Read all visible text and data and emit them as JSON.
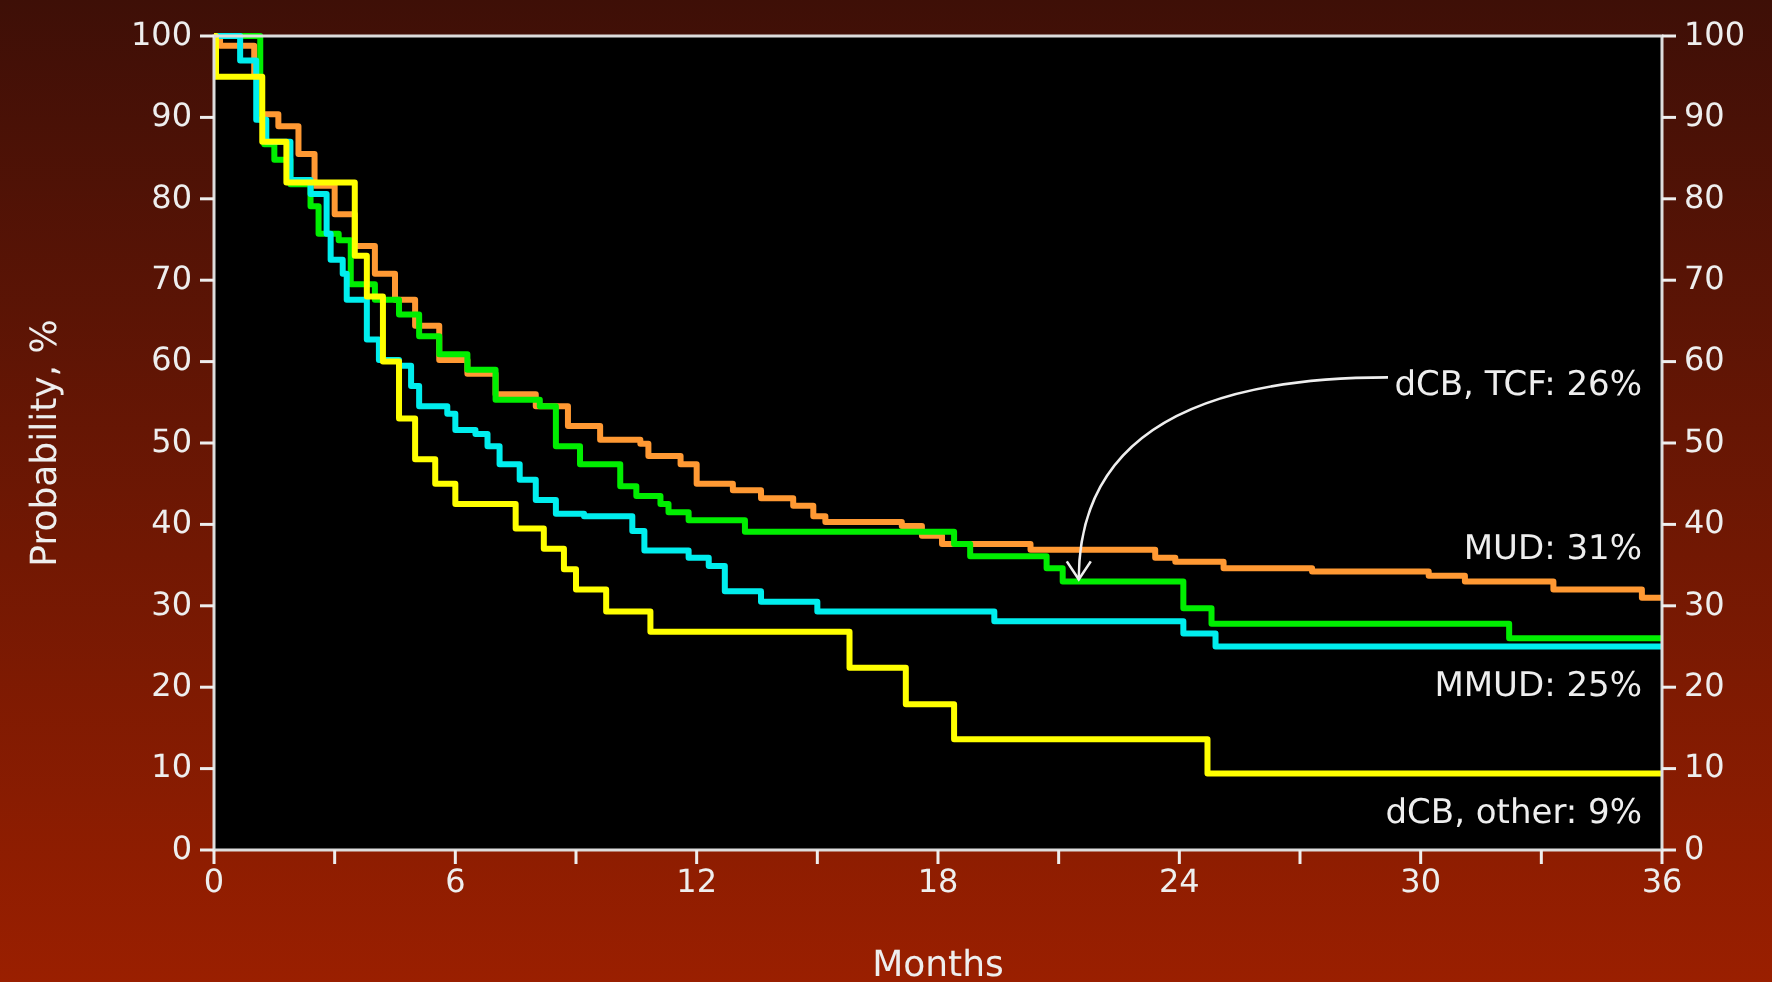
{
  "chart_data": {
    "type": "step",
    "xlabel": "Months",
    "ylabel": "Probability, %",
    "xlim": [
      0,
      36
    ],
    "xticks": [
      0,
      {
        "value": 3,
        "label": null
      },
      6,
      {
        "value": 9,
        "label": null
      },
      12,
      {
        "value": 15,
        "label": null
      },
      18,
      {
        "value": 21,
        "label": null
      },
      24,
      {
        "value": 27,
        "label": null
      },
      30,
      {
        "value": 33,
        "label": null
      },
      36
    ],
    "ylim": [
      0,
      100
    ],
    "yticks": [
      0,
      10,
      20,
      30,
      40,
      50,
      60,
      70,
      80,
      90,
      100
    ],
    "y2lim": [
      0,
      100
    ],
    "y2ticks": [
      0,
      10,
      20,
      30,
      40,
      50,
      60,
      70,
      80,
      90,
      100
    ],
    "grid": false,
    "series": [
      {
        "name": "MUD: 31%",
        "color": "#ff9933",
        "x": [
          0,
          0.15,
          1.0,
          1.15,
          1.6,
          2.1,
          2.5,
          3.0,
          3.5,
          4.0,
          4.5,
          5.0,
          5.6,
          6.3,
          7.0,
          8.0,
          8.8,
          9.6,
          10.6,
          10.8,
          11.6,
          12.0,
          12.9,
          13.6,
          14.4,
          14.9,
          15.2,
          17.1,
          17.6,
          18.1,
          20.3,
          23.4,
          23.9,
          25.1,
          27.3,
          30.2,
          31.1,
          33.3,
          35.5,
          36
        ],
        "values": [
          100,
          98.8,
          95.3,
          90.4,
          88.9,
          85.5,
          81.6,
          78.1,
          74.2,
          70.8,
          67.6,
          64.4,
          60.2,
          58.5,
          56,
          54.5,
          52.1,
          50.4,
          49.9,
          48.4,
          47.4,
          45,
          44.2,
          43.2,
          42.3,
          41,
          40.3,
          39.8,
          38.6,
          37.6,
          36.9,
          35.9,
          35.4,
          34.6,
          34.2,
          33.7,
          33,
          32,
          31,
          31
        ]
      },
      {
        "color": "#00ee00",
        "x": [
          0,
          0.8,
          1.15,
          1.25,
          1.5,
          1.9,
          2.4,
          2.6,
          3.1,
          3.4,
          4.0,
          4.6,
          5.1,
          5.6,
          6.3,
          7.0,
          8.1,
          8.5,
          9.1,
          10.1,
          10.5,
          11.1,
          11.3,
          11.8,
          13.2,
          18.4,
          18.8,
          20.7,
          21.1,
          24.1,
          24.8,
          32.2,
          36
        ],
        "values": [
          100,
          100,
          89.7,
          86.7,
          84.8,
          81.8,
          79.1,
          75.7,
          74.9,
          69.5,
          67.6,
          65.8,
          63.1,
          60.9,
          59,
          55.3,
          54.5,
          49.6,
          47.4,
          44.7,
          43.5,
          42.5,
          41.5,
          40.5,
          39.1,
          37.6,
          36.1,
          34.6,
          33,
          29.7,
          27.8,
          26,
          26
        ]
      },
      {
        "name": "MMUD: 25%",
        "color": "#00eeee",
        "x": [
          0,
          0.65,
          1.05,
          1.3,
          1.9,
          2.4,
          2.8,
          2.9,
          3.2,
          3.3,
          3.8,
          4.1,
          4.6,
          4.9,
          5.1,
          5.8,
          6.0,
          6.5,
          6.8,
          7.1,
          7.6,
          8.0,
          8.5,
          9.2,
          10.4,
          10.7,
          11.8,
          12.3,
          12.7,
          13.6,
          15.0,
          19.4,
          24.1,
          24.9,
          36
        ],
        "values": [
          100,
          97,
          89.7,
          87,
          82.3,
          80.6,
          75.7,
          72.5,
          70.8,
          67.6,
          62.7,
          60.2,
          59.5,
          57,
          54.5,
          53.6,
          51.6,
          51.1,
          49.6,
          47.4,
          45.5,
          43,
          41.3,
          41,
          39.2,
          36.8,
          35.9,
          34.9,
          31.8,
          30.5,
          29.3,
          28.1,
          26.6,
          25,
          25
        ]
      },
      {
        "name": "dCB, other: 9%",
        "color": "#ffff00",
        "x": [
          0,
          0.05,
          1.2,
          1.8,
          3.5,
          3.8,
          4.2,
          4.6,
          5.0,
          5.5,
          6.0,
          7.5,
          8.2,
          8.7,
          9.0,
          9.75,
          10.85,
          15.8,
          17.2,
          18.4,
          24.7,
          36
        ],
        "values": [
          100,
          95,
          87,
          82,
          73,
          68,
          60,
          53,
          48,
          45,
          42.5,
          39.5,
          37,
          34.5,
          32,
          29.3,
          26.8,
          22.4,
          17.9,
          13.6,
          9.4,
          9.4
        ]
      }
    ],
    "annotations": [
      {
        "text": "dCB, TCF: 26%",
        "x": 21.5,
        "y": 33
      }
    ]
  }
}
